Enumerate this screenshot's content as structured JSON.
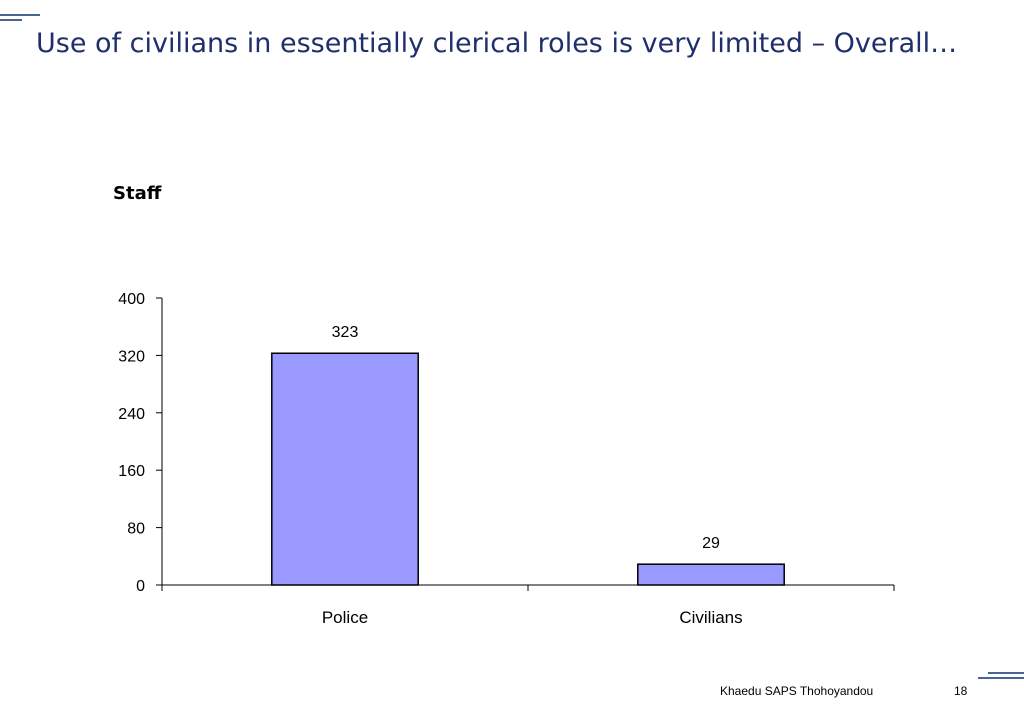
{
  "slide": {
    "title": "Use of civilians in essentially clerical roles is very limited – Overall…",
    "footer_text": "Khaedu SAPS Thohoyandou",
    "page_number": "18",
    "accent_color": "#4a6496",
    "title_color": "#1f2f6b"
  },
  "chart_data": {
    "type": "bar",
    "title": "Staff",
    "categories": [
      "Police",
      "Civilians"
    ],
    "values": [
      323,
      29
    ],
    "data_labels": [
      "323",
      "29"
    ],
    "ylim": [
      0,
      400
    ],
    "yticks": [
      0,
      80,
      160,
      240,
      320,
      400
    ],
    "ytick_labels": [
      "0",
      "80",
      "160",
      "240",
      "320",
      "400"
    ],
    "xlabel": "",
    "ylabel": "",
    "bar_color": "#9999ff",
    "grid": false,
    "legend": "none"
  }
}
